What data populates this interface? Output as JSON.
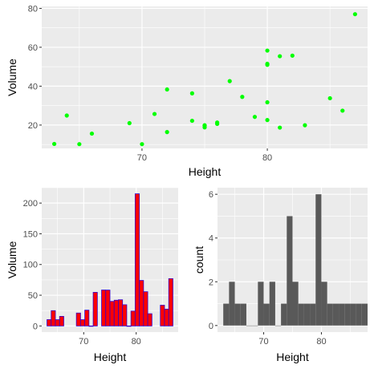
{
  "colors": {
    "panel_bg": "#ebebeb",
    "grid_major": "#ffffff",
    "scatter_point": "#00ff00",
    "volume_bar_fill": "#ff0000",
    "volume_bar_stroke": "#3300cc",
    "count_bar_fill": "#595959"
  },
  "chart_data": [
    {
      "id": "scatter",
      "type": "scatter",
      "xlabel": "Height",
      "ylabel": "Volume",
      "xlim": [
        62,
        88
      ],
      "ylim": [
        8,
        81
      ],
      "x_ticks": [
        70,
        80
      ],
      "y_ticks": [
        20,
        40,
        60,
        80
      ],
      "points": [
        {
          "x": 63,
          "y": 10.3
        },
        {
          "x": 64,
          "y": 24.9
        },
        {
          "x": 65,
          "y": 10.2
        },
        {
          "x": 66,
          "y": 15.6
        },
        {
          "x": 69,
          "y": 21.0
        },
        {
          "x": 70,
          "y": 10.2
        },
        {
          "x": 71,
          "y": 25.7
        },
        {
          "x": 72,
          "y": 38.3
        },
        {
          "x": 72,
          "y": 16.4
        },
        {
          "x": 74,
          "y": 22.2
        },
        {
          "x": 74,
          "y": 36.3
        },
        {
          "x": 75,
          "y": 18.8
        },
        {
          "x": 75,
          "y": 19.7
        },
        {
          "x": 75,
          "y": 19.9
        },
        {
          "x": 76,
          "y": 21.3
        },
        {
          "x": 76,
          "y": 20.6
        },
        {
          "x": 77,
          "y": 42.6
        },
        {
          "x": 78,
          "y": 34.5
        },
        {
          "x": 79,
          "y": 24.2
        },
        {
          "x": 80,
          "y": 58.3
        },
        {
          "x": 80,
          "y": 51.0
        },
        {
          "x": 80,
          "y": 51.5
        },
        {
          "x": 80,
          "y": 31.7
        },
        {
          "x": 80,
          "y": 22.6
        },
        {
          "x": 81,
          "y": 55.4
        },
        {
          "x": 81,
          "y": 18.7
        },
        {
          "x": 82,
          "y": 55.7
        },
        {
          "x": 83,
          "y": 19.9
        },
        {
          "x": 85,
          "y": 33.8
        },
        {
          "x": 86,
          "y": 27.4
        },
        {
          "x": 87,
          "y": 77.0
        }
      ]
    },
    {
      "id": "volume-hist",
      "type": "bar",
      "xlabel": "Height",
      "ylabel": "Volume",
      "xlim": [
        62,
        88
      ],
      "ylim": [
        -10,
        225
      ],
      "x_ticks": [
        70,
        80
      ],
      "y_ticks": [
        0,
        50,
        100,
        150,
        200
      ],
      "bins": [
        {
          "x0": 63.0,
          "x1": 63.8,
          "value": 10.3
        },
        {
          "x0": 63.8,
          "x1": 64.6,
          "value": 24.9
        },
        {
          "x0": 64.6,
          "x1": 65.4,
          "value": 10.2
        },
        {
          "x0": 65.4,
          "x1": 66.2,
          "value": 15.6
        },
        {
          "x0": 68.6,
          "x1": 69.4,
          "value": 21.0
        },
        {
          "x0": 69.4,
          "x1": 70.2,
          "value": 10.2
        },
        {
          "x0": 70.2,
          "x1": 71.0,
          "value": 25.7
        },
        {
          "x0": 71.0,
          "x1": 71.8,
          "value": 0
        },
        {
          "x0": 71.8,
          "x1": 72.6,
          "value": 54.7
        },
        {
          "x0": 73.4,
          "x1": 74.2,
          "value": 58.5
        },
        {
          "x0": 74.2,
          "x1": 75.0,
          "value": 58.4
        },
        {
          "x0": 75.0,
          "x1": 75.8,
          "value": 40.0
        },
        {
          "x0": 75.8,
          "x1": 76.6,
          "value": 41.9
        },
        {
          "x0": 76.6,
          "x1": 77.4,
          "value": 42.6
        },
        {
          "x0": 77.4,
          "x1": 78.2,
          "value": 34.5
        },
        {
          "x0": 78.2,
          "x1": 79.0,
          "value": 0
        },
        {
          "x0": 79.0,
          "x1": 79.8,
          "value": 24.2
        },
        {
          "x0": 79.8,
          "x1": 80.6,
          "value": 215.1
        },
        {
          "x0": 80.6,
          "x1": 81.4,
          "value": 74.1
        },
        {
          "x0": 81.4,
          "x1": 82.2,
          "value": 55.7
        },
        {
          "x0": 82.2,
          "x1": 83.0,
          "value": 19.9
        },
        {
          "x0": 84.6,
          "x1": 85.4,
          "value": 33.8
        },
        {
          "x0": 85.4,
          "x1": 86.2,
          "value": 27.4
        },
        {
          "x0": 86.2,
          "x1": 87.0,
          "value": 77.0
        }
      ]
    },
    {
      "id": "count-hist",
      "type": "bar",
      "xlabel": "Height",
      "ylabel": "count",
      "xlim": [
        62,
        88
      ],
      "ylim": [
        -0.3,
        6.3
      ],
      "x_ticks": [
        70,
        80
      ],
      "y_ticks": [
        0,
        2,
        4,
        6
      ],
      "bins": [
        {
          "x0": 63.0,
          "x1": 64.0,
          "value": 1
        },
        {
          "x0": 64.0,
          "x1": 65.0,
          "value": 2
        },
        {
          "x0": 65.0,
          "x1": 66.0,
          "value": 1
        },
        {
          "x0": 66.0,
          "x1": 67.0,
          "value": 1
        },
        {
          "x0": 67.0,
          "x1": 68.0,
          "value": 0
        },
        {
          "x0": 68.0,
          "x1": 69.0,
          "value": 0
        },
        {
          "x0": 69.0,
          "x1": 70.0,
          "value": 2
        },
        {
          "x0": 70.0,
          "x1": 71.0,
          "value": 1
        },
        {
          "x0": 71.0,
          "x1": 72.0,
          "value": 2
        },
        {
          "x0": 72.0,
          "x1": 73.0,
          "value": 0
        },
        {
          "x0": 73.0,
          "x1": 74.0,
          "value": 1
        },
        {
          "x0": 74.0,
          "x1": 75.0,
          "value": 5
        },
        {
          "x0": 75.0,
          "x1": 76.0,
          "value": 2
        },
        {
          "x0": 76.0,
          "x1": 77.0,
          "value": 1
        },
        {
          "x0": 77.0,
          "x1": 78.0,
          "value": 1
        },
        {
          "x0": 78.0,
          "x1": 79.0,
          "value": 1
        },
        {
          "x0": 79.0,
          "x1": 80.0,
          "value": 6
        },
        {
          "x0": 80.0,
          "x1": 81.0,
          "value": 2
        },
        {
          "x0": 81.0,
          "x1": 82.0,
          "value": 1
        },
        {
          "x0": 82.0,
          "x1": 83.0,
          "value": 1
        },
        {
          "x0": 83.0,
          "x1": 84.0,
          "value": 1
        },
        {
          "x0": 84.0,
          "x1": 85.0,
          "value": 1
        },
        {
          "x0": 85.0,
          "x1": 86.0,
          "value": 1
        },
        {
          "x0": 86.0,
          "x1": 87.0,
          "value": 1
        },
        {
          "x0": 87.0,
          "x1": 88.0,
          "value": 1
        }
      ]
    }
  ]
}
